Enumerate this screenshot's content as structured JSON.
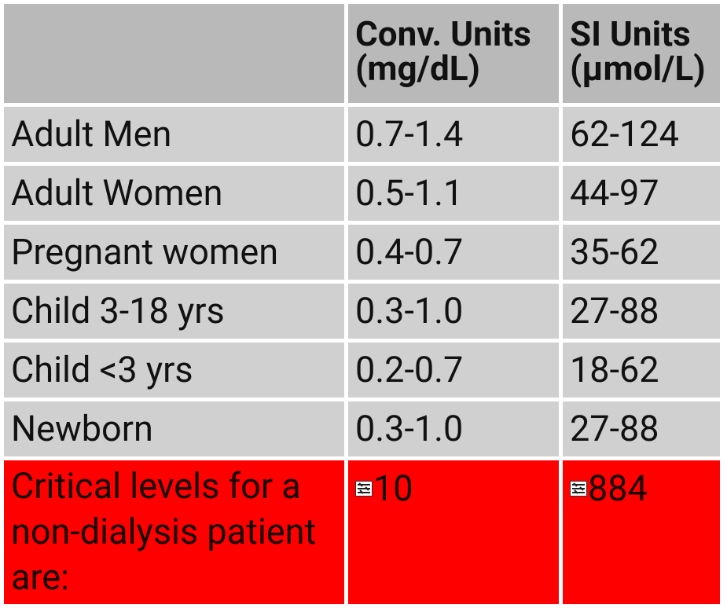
{
  "table": {
    "header": {
      "col1": "",
      "col2": "Conv. Units (mg/dL)",
      "col3": "SI Units (μmol/L)"
    },
    "rows": [
      {
        "group": "Adult Men",
        "conv": "0.7-1.4",
        "si": "62-124"
      },
      {
        "group": "Adult Women",
        "conv": "0.5-1.1",
        "si": "44-97"
      },
      {
        "group": "Pregnant women",
        "conv": "0.4-0.7",
        "si": "35-62"
      },
      {
        "group": "Child 3-18 yrs",
        "conv": "0.3-1.0",
        "si": "27-88"
      },
      {
        "group": "Child <3 yrs",
        "conv": "0.2-0.7",
        "si": "18-62"
      },
      {
        "group": "Newborn",
        "conv": "0.3-1.0",
        "si": "27-88"
      }
    ],
    "critical": {
      "label": "Critical levels for a non-dialysis patient are:",
      "conv": "10",
      "si": "884",
      "symbol_icon": "missing-glyph-icon"
    }
  },
  "colors": {
    "header_bg": "#b9b9b9",
    "row_bg": "#d0d0d0",
    "critical_bg": "#ff0000",
    "grid_lines": "#ffffff",
    "text": "#111111"
  }
}
